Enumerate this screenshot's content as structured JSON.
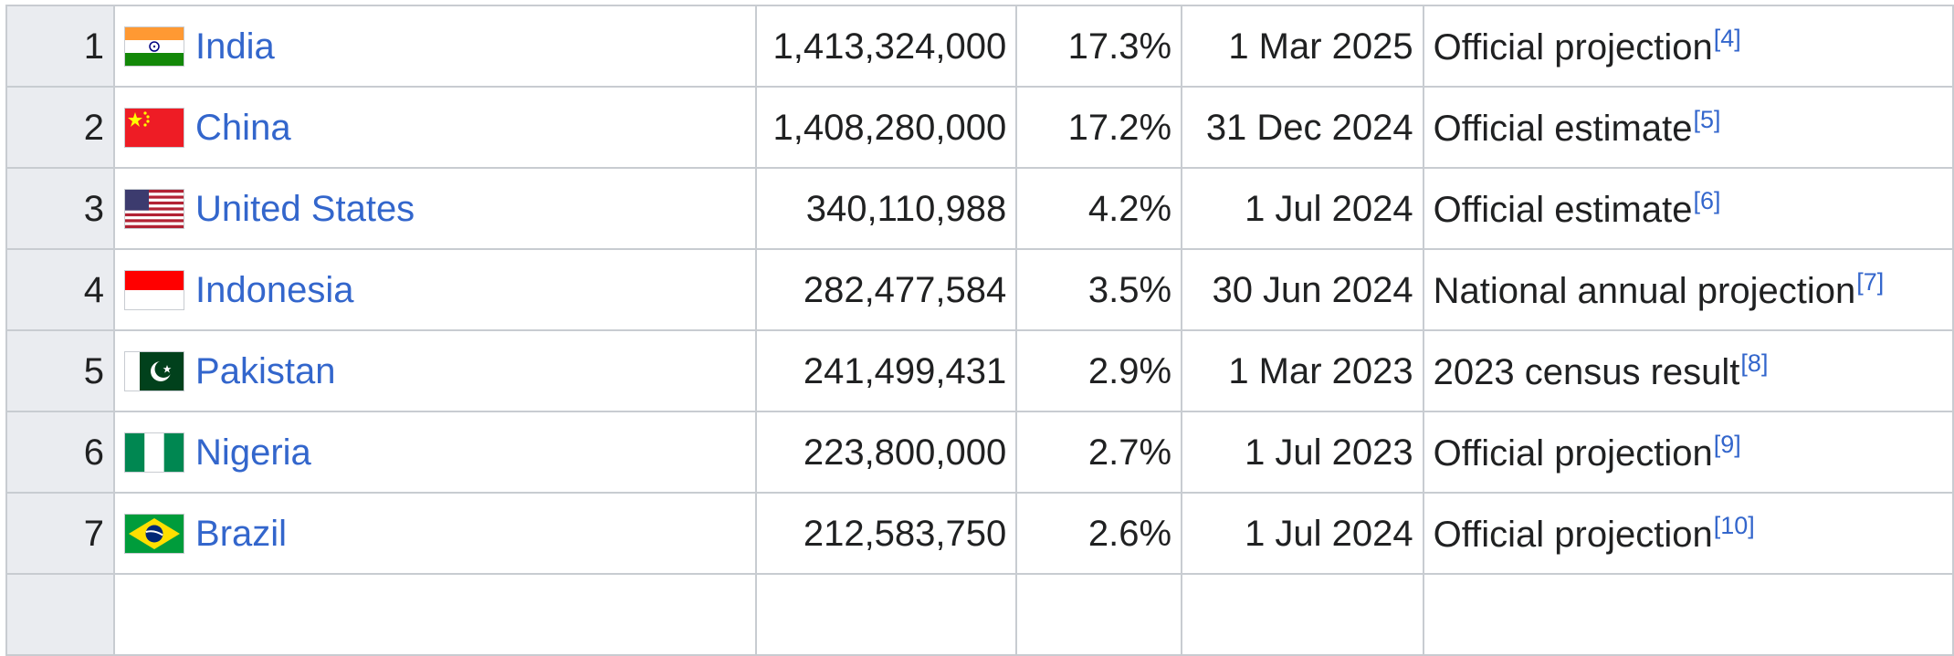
{
  "table": {
    "rows": [
      {
        "rank": "1",
        "country": "India",
        "flag": "india-flag-icon",
        "population": "1,413,324,000",
        "percent": "17.3%",
        "date": "1 Mar 2025",
        "source": "Official projection",
        "ref": "[4]"
      },
      {
        "rank": "2",
        "country": "China",
        "flag": "china-flag-icon",
        "population": "1,408,280,000",
        "percent": "17.2%",
        "date": "31 Dec 2024",
        "source": "Official estimate",
        "ref": "[5]"
      },
      {
        "rank": "3",
        "country": "United States",
        "flag": "usa-flag-icon",
        "population": "340,110,988",
        "percent": "4.2%",
        "date": "1 Jul 2024",
        "source": "Official estimate",
        "ref": "[6]"
      },
      {
        "rank": "4",
        "country": "Indonesia",
        "flag": "indonesia-flag-icon",
        "population": "282,477,584",
        "percent": "3.5%",
        "date": "30 Jun 2024",
        "source": "National annual projection",
        "ref": "[7]"
      },
      {
        "rank": "5",
        "country": "Pakistan",
        "flag": "pakistan-flag-icon",
        "population": "241,499,431",
        "percent": "2.9%",
        "date": "1 Mar 2023",
        "source": "2023 census result",
        "ref": "[8]"
      },
      {
        "rank": "6",
        "country": "Nigeria",
        "flag": "nigeria-flag-icon",
        "population": "223,800,000",
        "percent": "2.7%",
        "date": "1 Jul 2023",
        "source": "Official projection",
        "ref": "[9]"
      },
      {
        "rank": "7",
        "country": "Brazil",
        "flag": "brazil-flag-icon",
        "population": "212,583,750",
        "percent": "2.6%",
        "date": "1 Jul 2024",
        "source": "Official projection",
        "ref": "[10]"
      }
    ]
  },
  "colors": {
    "link": "#3366cc",
    "rank_background": "#eaecf0",
    "border": "#c8ccd1"
  }
}
